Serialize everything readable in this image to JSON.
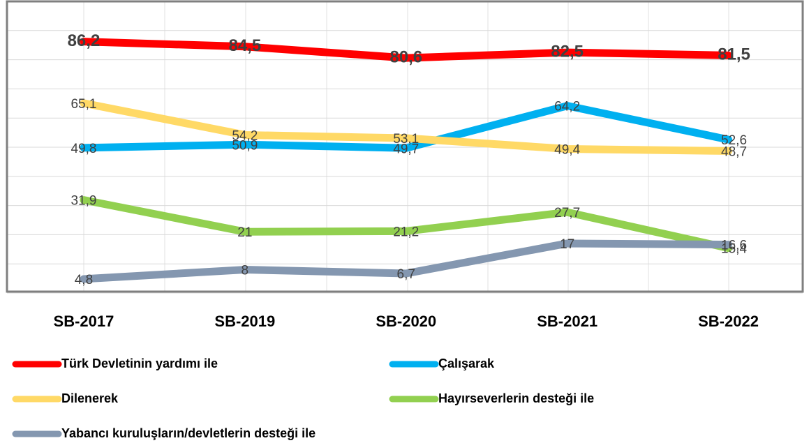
{
  "chart_data": {
    "type": "line",
    "categories": [
      "SB-2017",
      "SB-2019",
      "SB-2020",
      "SB-2021",
      "SB-2022"
    ],
    "series": [
      {
        "name": "Türk Devletinin yardımı ile",
        "color": "#ff0000",
        "values": [
          86.2,
          84.5,
          80.6,
          82.5,
          81.5
        ],
        "value_labels": [
          "86,2",
          "84,5",
          "80,6",
          "82,5",
          "81,5"
        ]
      },
      {
        "name": "Çalışarak",
        "color": "#00b0f0",
        "values": [
          49.8,
          50.9,
          49.7,
          64.2,
          52.6
        ],
        "value_labels": [
          "49,8",
          "50,9",
          "49,7",
          "64,2",
          "52,6"
        ]
      },
      {
        "name": "Dilenerek",
        "color": "#ffd966",
        "values": [
          65.1,
          54.2,
          53.1,
          49.4,
          48.7
        ],
        "value_labels": [
          "65,1",
          "54,2",
          "53,1",
          "49,4",
          "48,7"
        ]
      },
      {
        "name": "Hayırseverlerin desteği ile",
        "color": "#92d050",
        "values": [
          31.9,
          21,
          21.2,
          27.7,
          15.4
        ],
        "value_labels": [
          "31,9",
          "21",
          "21,2",
          "27,7",
          "15,4"
        ]
      },
      {
        "name": "Yabancı kuruluşların/devletlerin desteği ile",
        "color": "#8497b0",
        "values": [
          4.8,
          8,
          6.7,
          17,
          16.6
        ],
        "value_labels": [
          "4,8",
          "8",
          "6,7",
          "17",
          "16,6"
        ]
      }
    ],
    "ylim": [
      0,
      100
    ],
    "yticks": [
      0,
      10,
      20,
      30,
      40,
      50,
      60,
      70,
      80,
      90,
      100
    ],
    "grid": true
  }
}
